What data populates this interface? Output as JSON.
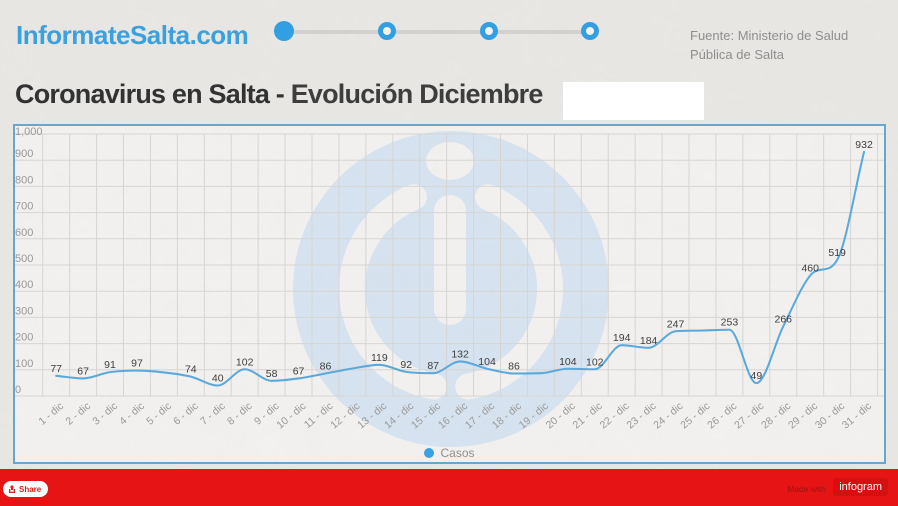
{
  "header": {
    "logo": "InformateSalta.com",
    "source_line1": "Fuente: Ministerio de Salud",
    "source_line2": "Pública de Salta",
    "stepper": {
      "steps": 4,
      "active_index": 0
    }
  },
  "title": {
    "part1": "Coronavirus en Salta - ",
    "part2": "Evolución Diciembre"
  },
  "chart_data": {
    "type": "line",
    "title": "Coronavirus en Salta - Evolución Diciembre",
    "categories": [
      "1 - dic",
      "2 - dic",
      "3 - dic",
      "4 - dic",
      "5 - dic",
      "6 - dic",
      "7 - dic",
      "8 - dic",
      "9 - dic",
      "10 - dic",
      "11 - dic",
      "12 - dic",
      "13 - dic",
      "14 - dic",
      "15 - dic",
      "16 - dic",
      "17 - dic",
      "18 - dic",
      "19 - dic",
      "20 - dic",
      "21 - dic",
      "22 - dic",
      "23 - dic",
      "24 - dic",
      "25 - dic",
      "26 - dic",
      "27 - dic",
      "28 - dic",
      "29 - dic",
      "30 - dic",
      "31 - dic"
    ],
    "series": [
      {
        "name": "Casos",
        "values": [
          77,
          67,
          91,
          97,
          90,
          74,
          40,
          102,
          58,
          67,
          86,
          105,
          119,
          92,
          87,
          132,
          104,
          86,
          87,
          104,
          102,
          194,
          184,
          247,
          250,
          253,
          49,
          266,
          460,
          519,
          932
        ]
      }
    ],
    "point_labels": [
      "77",
      "67",
      "91",
      "97",
      "",
      "74",
      "40",
      "102",
      "58",
      "67",
      "86",
      "",
      "119",
      "92",
      "87",
      "132",
      "104",
      "86",
      "",
      "104",
      "102",
      "194",
      "184",
      "247",
      "",
      "253",
      "49",
      "266",
      "460",
      "519",
      "932"
    ],
    "ylim": [
      0,
      1000
    ],
    "ytick_labels": [
      "1,000",
      "900",
      "800",
      "700",
      "600",
      "500",
      "400",
      "300",
      "200",
      "100",
      "0"
    ],
    "legend_position": "bottom",
    "grid": true,
    "line_color": "#58a9de"
  },
  "footer": {
    "share_label": "Share",
    "made_with": "Made with",
    "brand": "infogram"
  },
  "colors": {
    "page_bg": "#e9e8e5",
    "chart_bg": "#f3f2f0",
    "chart_border": "#63a7cf",
    "gridline": "#d8d6d3",
    "axis_text": "#9a9896",
    "point_label_text": "#3a3a3a",
    "accent_blue": "#2f9fe4",
    "footer_red": "#e61414",
    "watermark_blue": "#d7e4f1"
  }
}
